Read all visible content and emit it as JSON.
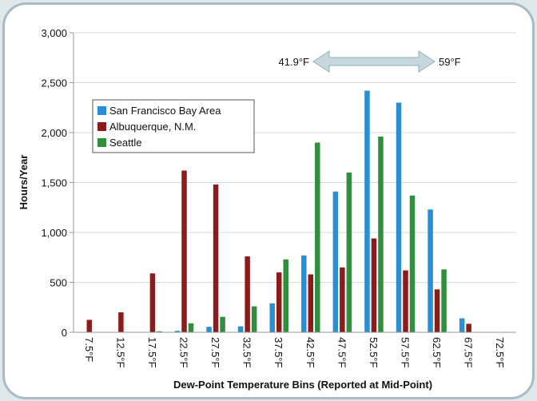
{
  "chart_data": {
    "type": "bar",
    "xlabel": "Dew-Point Temperature Bins (Reported at Mid-Point)",
    "ylabel": "Hours/Year",
    "ylim": [
      0,
      3000
    ],
    "yticks": [
      "0",
      "500",
      "1,000",
      "1,500",
      "2,000",
      "2,500",
      "3,000"
    ],
    "ytick_values": [
      0,
      500,
      1000,
      1500,
      2000,
      2500,
      3000
    ],
    "grid": true,
    "legend_position": "top-left",
    "categories": [
      "7.5°F",
      "12.5°F",
      "17.5°F",
      "22.5°F",
      "27.5°F",
      "32.5°F",
      "37.5°F",
      "42.5°F",
      "47.5°F",
      "52.5°F",
      "57.5°F",
      "62.5°F",
      "67.5°F",
      "72.5°F"
    ],
    "series": [
      {
        "name": "San Francisco Bay Area",
        "color": "#2a8fd2",
        "values": [
          0,
          0,
          0,
          15,
          55,
          60,
          290,
          770,
          1410,
          2420,
          2300,
          1230,
          140,
          0
        ]
      },
      {
        "name": "Albuquerque, N.M.",
        "color": "#8c1c1c",
        "values": [
          125,
          200,
          590,
          1620,
          1480,
          760,
          600,
          580,
          650,
          940,
          620,
          430,
          85,
          0
        ]
      },
      {
        "name": "Seattle",
        "color": "#2f8f3d",
        "values": [
          0,
          0,
          10,
          90,
          155,
          260,
          730,
          1900,
          1600,
          1960,
          1370,
          630,
          0,
          0
        ]
      }
    ],
    "annotation": {
      "left_label": "41.9°F",
      "right_label": "59°F",
      "arrow_color": "#b8cdd6"
    }
  }
}
